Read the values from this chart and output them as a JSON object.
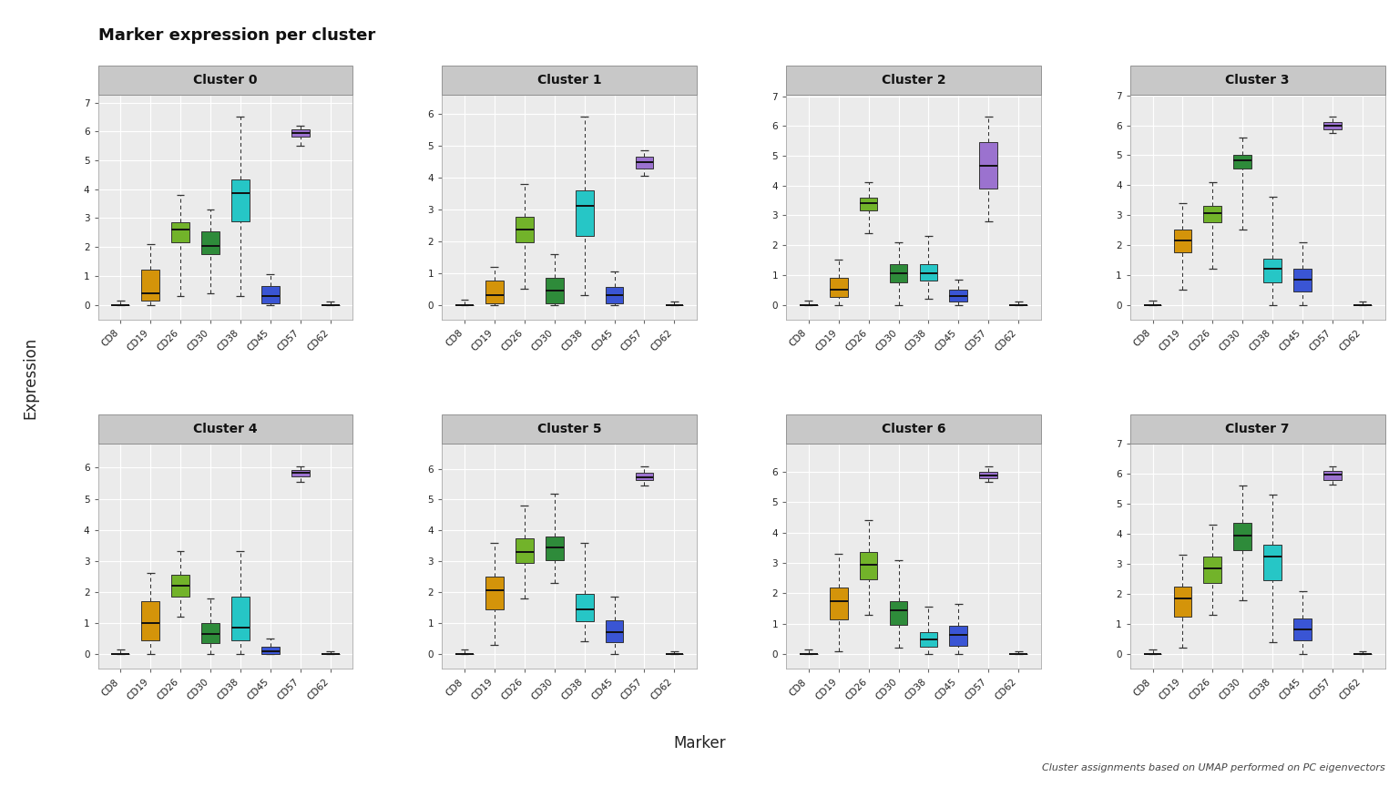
{
  "title": "Marker expression per cluster",
  "xlabel": "Marker",
  "ylabel": "Expression",
  "caption": "Cluster assignments based on UMAP performed on PC eigenvectors",
  "markers": [
    "CD8",
    "CD19",
    "CD26",
    "CD30",
    "CD38",
    "CD45",
    "CD57",
    "CD62"
  ],
  "marker_colors": [
    "#848484",
    "#D4940A",
    "#72B32A",
    "#2E8B3A",
    "#26C6C6",
    "#3A55D4",
    "#9B72CF",
    "#555555"
  ],
  "clusters": [
    "Cluster 0",
    "Cluster 1",
    "Cluster 2",
    "Cluster 3",
    "Cluster 4",
    "Cluster 5",
    "Cluster 6",
    "Cluster 7"
  ],
  "boxplot_data": {
    "Cluster 0": {
      "CD8": {
        "whislo": 0.0,
        "q1": 0.0,
        "med": 0.0,
        "q3": 0.0,
        "whishi": 0.15
      },
      "CD19": {
        "whislo": 0.0,
        "q1": 0.15,
        "med": 0.4,
        "q3": 1.2,
        "whishi": 2.1
      },
      "CD26": {
        "whislo": 0.3,
        "q1": 2.15,
        "med": 2.6,
        "q3": 2.85,
        "whishi": 3.8
      },
      "CD30": {
        "whislo": 0.4,
        "q1": 1.75,
        "med": 2.05,
        "q3": 2.55,
        "whishi": 3.3
      },
      "CD38": {
        "whislo": 0.3,
        "q1": 2.9,
        "med": 3.85,
        "q3": 4.35,
        "whishi": 6.5
      },
      "CD45": {
        "whislo": 0.0,
        "q1": 0.05,
        "med": 0.3,
        "q3": 0.65,
        "whishi": 1.05
      },
      "CD57": {
        "whislo": 5.5,
        "q1": 5.82,
        "med": 5.95,
        "q3": 6.08,
        "whishi": 6.2
      },
      "CD62": {
        "whislo": 0.0,
        "q1": 0.0,
        "med": 0.0,
        "q3": 0.0,
        "whishi": 0.1
      }
    },
    "Cluster 1": {
      "CD8": {
        "whislo": 0.0,
        "q1": 0.0,
        "med": 0.0,
        "q3": 0.0,
        "whishi": 0.15
      },
      "CD19": {
        "whislo": 0.0,
        "q1": 0.05,
        "med": 0.3,
        "q3": 0.75,
        "whishi": 1.2
      },
      "CD26": {
        "whislo": 0.5,
        "q1": 1.95,
        "med": 2.35,
        "q3": 2.75,
        "whishi": 3.8
      },
      "CD30": {
        "whislo": 0.0,
        "q1": 0.05,
        "med": 0.45,
        "q3": 0.85,
        "whishi": 1.6
      },
      "CD38": {
        "whislo": 0.3,
        "q1": 2.15,
        "med": 3.1,
        "q3": 3.6,
        "whishi": 5.9
      },
      "CD45": {
        "whislo": 0.0,
        "q1": 0.05,
        "med": 0.3,
        "q3": 0.55,
        "whishi": 1.05
      },
      "CD57": {
        "whislo": 4.05,
        "q1": 4.28,
        "med": 4.48,
        "q3": 4.65,
        "whishi": 4.85
      },
      "CD62": {
        "whislo": 0.0,
        "q1": 0.0,
        "med": 0.0,
        "q3": 0.0,
        "whishi": 0.1
      }
    },
    "Cluster 2": {
      "CD8": {
        "whislo": 0.0,
        "q1": 0.0,
        "med": 0.0,
        "q3": 0.0,
        "whishi": 0.15
      },
      "CD19": {
        "whislo": 0.0,
        "q1": 0.25,
        "med": 0.5,
        "q3": 0.9,
        "whishi": 1.5
      },
      "CD26": {
        "whislo": 2.4,
        "q1": 3.15,
        "med": 3.4,
        "q3": 3.6,
        "whishi": 4.1
      },
      "CD30": {
        "whislo": 0.0,
        "q1": 0.75,
        "med": 1.05,
        "q3": 1.35,
        "whishi": 2.1
      },
      "CD38": {
        "whislo": 0.2,
        "q1": 0.8,
        "med": 1.05,
        "q3": 1.35,
        "whishi": 2.3
      },
      "CD45": {
        "whislo": 0.0,
        "q1": 0.1,
        "med": 0.28,
        "q3": 0.5,
        "whishi": 0.85
      },
      "CD57": {
        "whislo": 2.8,
        "q1": 3.9,
        "med": 4.65,
        "q3": 5.45,
        "whishi": 6.3
      },
      "CD62": {
        "whislo": 0.0,
        "q1": 0.0,
        "med": 0.0,
        "q3": 0.0,
        "whishi": 0.1
      }
    },
    "Cluster 3": {
      "CD8": {
        "whislo": 0.0,
        "q1": 0.0,
        "med": 0.0,
        "q3": 0.0,
        "whishi": 0.15
      },
      "CD19": {
        "whislo": 0.5,
        "q1": 1.75,
        "med": 2.15,
        "q3": 2.5,
        "whishi": 3.4
      },
      "CD26": {
        "whislo": 1.2,
        "q1": 2.75,
        "med": 3.05,
        "q3": 3.3,
        "whishi": 4.1
      },
      "CD30": {
        "whislo": 2.5,
        "q1": 4.55,
        "med": 4.82,
        "q3": 5.0,
        "whishi": 5.6
      },
      "CD38": {
        "whislo": 0.0,
        "q1": 0.75,
        "med": 1.2,
        "q3": 1.55,
        "whishi": 3.6
      },
      "CD45": {
        "whislo": 0.0,
        "q1": 0.45,
        "med": 0.85,
        "q3": 1.2,
        "whishi": 2.1
      },
      "CD57": {
        "whislo": 5.75,
        "q1": 5.88,
        "med": 5.98,
        "q3": 6.12,
        "whishi": 6.28
      },
      "CD62": {
        "whislo": 0.0,
        "q1": 0.0,
        "med": 0.0,
        "q3": 0.0,
        "whishi": 0.1
      }
    },
    "Cluster 4": {
      "CD8": {
        "whislo": 0.0,
        "q1": 0.0,
        "med": 0.0,
        "q3": 0.0,
        "whishi": 0.15
      },
      "CD19": {
        "whislo": 0.0,
        "q1": 0.45,
        "med": 1.0,
        "q3": 1.7,
        "whishi": 2.6
      },
      "CD26": {
        "whislo": 1.2,
        "q1": 1.85,
        "med": 2.2,
        "q3": 2.55,
        "whishi": 3.3
      },
      "CD30": {
        "whislo": 0.0,
        "q1": 0.35,
        "med": 0.65,
        "q3": 1.0,
        "whishi": 1.8
      },
      "CD38": {
        "whislo": 0.0,
        "q1": 0.45,
        "med": 0.85,
        "q3": 1.85,
        "whishi": 3.3
      },
      "CD45": {
        "whislo": 0.0,
        "q1": 0.0,
        "med": 0.08,
        "q3": 0.22,
        "whishi": 0.5
      },
      "CD57": {
        "whislo": 5.55,
        "q1": 5.72,
        "med": 5.83,
        "q3": 5.93,
        "whishi": 6.05
      },
      "CD62": {
        "whislo": 0.0,
        "q1": 0.0,
        "med": 0.0,
        "q3": 0.0,
        "whishi": 0.1
      }
    },
    "Cluster 5": {
      "CD8": {
        "whislo": 0.0,
        "q1": 0.0,
        "med": 0.0,
        "q3": 0.0,
        "whishi": 0.15
      },
      "CD19": {
        "whislo": 0.3,
        "q1": 1.45,
        "med": 2.05,
        "q3": 2.5,
        "whishi": 3.6
      },
      "CD26": {
        "whislo": 1.8,
        "q1": 2.95,
        "med": 3.3,
        "q3": 3.75,
        "whishi": 4.8
      },
      "CD30": {
        "whislo": 2.3,
        "q1": 3.05,
        "med": 3.45,
        "q3": 3.8,
        "whishi": 5.2
      },
      "CD38": {
        "whislo": 0.4,
        "q1": 1.05,
        "med": 1.45,
        "q3": 1.95,
        "whishi": 3.6
      },
      "CD45": {
        "whislo": 0.0,
        "q1": 0.38,
        "med": 0.7,
        "q3": 1.08,
        "whishi": 1.85
      },
      "CD57": {
        "whislo": 5.45,
        "q1": 5.62,
        "med": 5.73,
        "q3": 5.88,
        "whishi": 6.08
      },
      "CD62": {
        "whislo": 0.0,
        "q1": 0.0,
        "med": 0.0,
        "q3": 0.0,
        "whishi": 0.1
      }
    },
    "Cluster 6": {
      "CD8": {
        "whislo": 0.0,
        "q1": 0.0,
        "med": 0.0,
        "q3": 0.0,
        "whishi": 0.15
      },
      "CD19": {
        "whislo": 0.1,
        "q1": 1.15,
        "med": 1.75,
        "q3": 2.2,
        "whishi": 3.3
      },
      "CD26": {
        "whislo": 1.3,
        "q1": 2.45,
        "med": 2.95,
        "q3": 3.35,
        "whishi": 4.4
      },
      "CD30": {
        "whislo": 0.2,
        "q1": 0.95,
        "med": 1.45,
        "q3": 1.75,
        "whishi": 3.1
      },
      "CD38": {
        "whislo": 0.0,
        "q1": 0.25,
        "med": 0.48,
        "q3": 0.72,
        "whishi": 1.55
      },
      "CD45": {
        "whislo": 0.0,
        "q1": 0.28,
        "med": 0.62,
        "q3": 0.92,
        "whishi": 1.65
      },
      "CD57": {
        "whislo": 5.65,
        "q1": 5.77,
        "med": 5.88,
        "q3": 5.98,
        "whishi": 6.18
      },
      "CD62": {
        "whislo": 0.0,
        "q1": 0.0,
        "med": 0.0,
        "q3": 0.0,
        "whishi": 0.1
      }
    },
    "Cluster 7": {
      "CD8": {
        "whislo": 0.0,
        "q1": 0.0,
        "med": 0.0,
        "q3": 0.0,
        "whishi": 0.15
      },
      "CD19": {
        "whislo": 0.2,
        "q1": 1.25,
        "med": 1.85,
        "q3": 2.25,
        "whishi": 3.3
      },
      "CD26": {
        "whislo": 1.3,
        "q1": 2.35,
        "med": 2.85,
        "q3": 3.25,
        "whishi": 4.3
      },
      "CD30": {
        "whislo": 1.8,
        "q1": 3.45,
        "med": 3.95,
        "q3": 4.35,
        "whishi": 5.6
      },
      "CD38": {
        "whislo": 0.4,
        "q1": 2.45,
        "med": 3.25,
        "q3": 3.65,
        "whishi": 5.3
      },
      "CD45": {
        "whislo": 0.0,
        "q1": 0.45,
        "med": 0.82,
        "q3": 1.18,
        "whishi": 2.1
      },
      "CD57": {
        "whislo": 5.65,
        "q1": 5.78,
        "med": 5.98,
        "q3": 6.08,
        "whishi": 6.25
      },
      "CD62": {
        "whislo": 0.0,
        "q1": 0.0,
        "med": 0.0,
        "q3": 0.0,
        "whishi": 0.1
      }
    }
  },
  "background_color": "#FFFFFF",
  "panel_bg": "#EBEBEB",
  "strip_bg": "#C8C8C8",
  "grid_color": "#FFFFFF"
}
